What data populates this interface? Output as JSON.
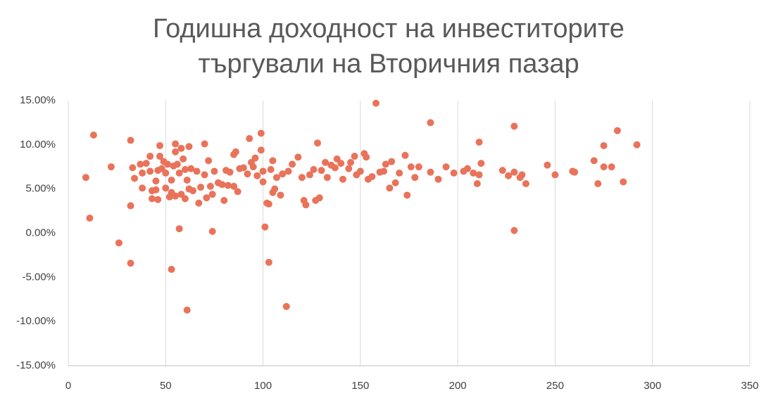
{
  "chart_data": {
    "type": "scatter",
    "title": "Годишна доходност на инвеститорите търгували на Вторичния пазар",
    "color": "#e9735a",
    "xlim": [
      0,
      350
    ],
    "xticks": [
      0,
      50,
      100,
      150,
      200,
      250,
      300,
      350
    ],
    "ylim": [
      -15,
      15
    ],
    "yticks": [
      {
        "value": -15,
        "label": "-15.00%"
      },
      {
        "value": -10,
        "label": "-10.00%"
      },
      {
        "value": -5,
        "label": "-5.00%"
      },
      {
        "value": 0,
        "label": "0.00%"
      },
      {
        "value": 5,
        "label": "5.00%"
      },
      {
        "value": 10,
        "label": "10.00%"
      },
      {
        "value": 15,
        "label": "15.00%"
      }
    ],
    "grid": true,
    "x": [
      9,
      11,
      13,
      22,
      26,
      32,
      32,
      32,
      33,
      34,
      37,
      38,
      38,
      40,
      42,
      42,
      43,
      43,
      45,
      45,
      46,
      46,
      47,
      47,
      48,
      49,
      50,
      50,
      51,
      52,
      53,
      53,
      53,
      54,
      55,
      55,
      55,
      56,
      57,
      57,
      58,
      58,
      59,
      60,
      60,
      61,
      61,
      62,
      62,
      63,
      64,
      66,
      67,
      68,
      70,
      70,
      71,
      72,
      73,
      74,
      74,
      75,
      77,
      79,
      80,
      81,
      82,
      83,
      85,
      85,
      86,
      87,
      88,
      90,
      92,
      93,
      94,
      95,
      96,
      97,
      99,
      99,
      100,
      100,
      101,
      102,
      103,
      103,
      104,
      105,
      105,
      106,
      107,
      109,
      110,
      112,
      113,
      115,
      118,
      120,
      121,
      122,
      124,
      126,
      127,
      128,
      129,
      130,
      132,
      133,
      135,
      137,
      138,
      140,
      141,
      144,
      145,
      147,
      148,
      150,
      152,
      153,
      154,
      156,
      158,
      160,
      162,
      163,
      165,
      166,
      168,
      170,
      173,
      174,
      176,
      178,
      180,
      186,
      186,
      190,
      194,
      198,
      203,
      205,
      208,
      210,
      211,
      211,
      212,
      223,
      226,
      229,
      229,
      229,
      232,
      233,
      235,
      246,
      250,
      259,
      260,
      270,
      272,
      275,
      275,
      279,
      282,
      285,
      292
    ],
    "values": [
      6.3,
      1.7,
      11.1,
      7.5,
      -1.1,
      3.1,
      -3.4,
      10.5,
      7.4,
      6.2,
      7.8,
      5.1,
      6.8,
      7.9,
      8.7,
      7,
      4.8,
      3.9,
      4.9,
      5.9,
      7.1,
      3.8,
      9.9,
      8.7,
      7.3,
      8.1,
      5.1,
      6.8,
      7.8,
      4.1,
      4.6,
      -4.1,
      6,
      7.6,
      10.1,
      9.2,
      4.2,
      7.8,
      0.5,
      6.8,
      9.6,
      4.4,
      8.4,
      3.9,
      7.2,
      -8.7,
      6,
      9.8,
      5,
      7.3,
      4.8,
      7,
      3.4,
      5.2,
      10.1,
      6.6,
      4,
      8.2,
      5.3,
      0.2,
      4.4,
      7,
      5.7,
      5.5,
      3.7,
      7.1,
      5.4,
      6.9,
      8.9,
      5.3,
      9.2,
      4.7,
      7.3,
      7.4,
      6.7,
      10.7,
      8,
      7.5,
      8.5,
      6.5,
      11.3,
      9.4,
      7,
      5.8,
      0.7,
      3.4,
      -3.3,
      3.3,
      7.2,
      8.2,
      4.6,
      5,
      6.3,
      4.3,
      6.7,
      -8.3,
      7,
      7.8,
      8.6,
      6.3,
      3.7,
      3.2,
      6.6,
      7.2,
      3.7,
      10.2,
      4,
      7.1,
      8,
      6.3,
      7.7,
      7.4,
      8.4,
      7.9,
      6.1,
      7.3,
      8,
      8.7,
      6.6,
      7,
      9,
      8.6,
      6.1,
      6.4,
      14.7,
      6.9,
      7,
      7.8,
      5.1,
      8.1,
      5.7,
      6.8,
      8.8,
      4.3,
      7.5,
      6.3,
      7.5,
      6.9,
      12.5,
      6.1,
      7.5,
      6.8,
      7,
      7.3,
      6.8,
      5.6,
      10.3,
      6.6,
      7.9,
      7.1,
      6.5,
      12.1,
      0.3,
      6.9,
      6.3,
      6.6,
      5.6,
      7.7,
      6.6,
      7,
      6.9,
      8.2,
      5.6,
      9.9,
      7.5,
      7.5,
      11.6,
      5.8,
      10
    ]
  }
}
